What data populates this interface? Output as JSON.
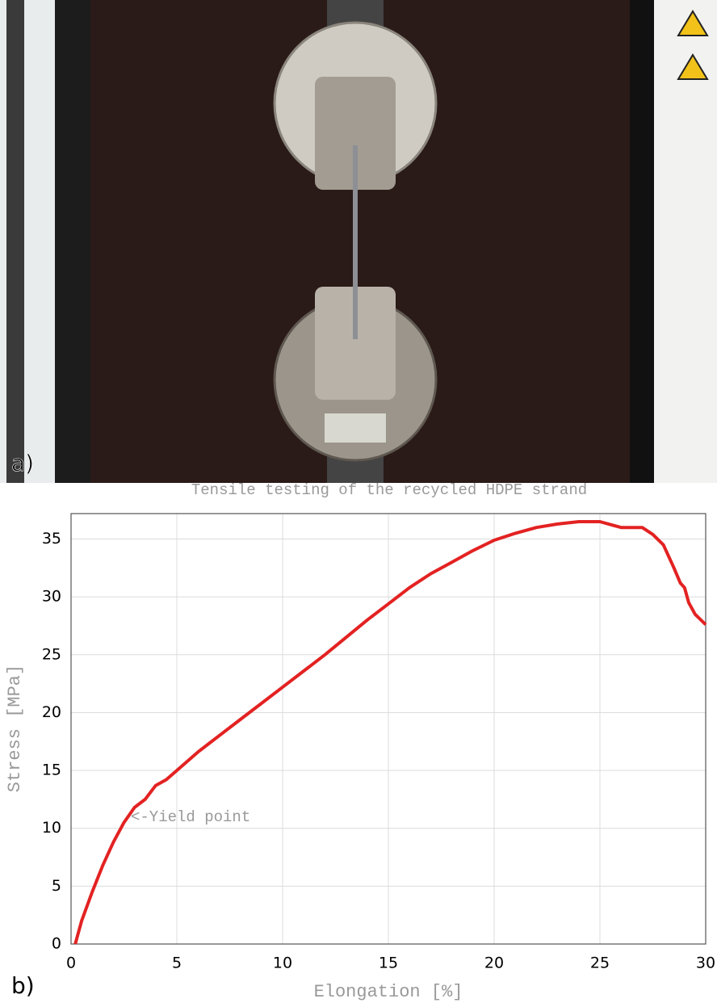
{
  "panel_labels": [
    "a)",
    "b)"
  ],
  "chart_data": {
    "type": "line",
    "title": "Tensile testing of the recycled HDPE strand",
    "x_label": "Elongation [%]",
    "y_label": "Stress [MPa]",
    "annotation": "<-Yield point",
    "color": "#e32222",
    "x": [
      0.2,
      0.5,
      1,
      1.5,
      2,
      2.5,
      3,
      3.5,
      4,
      4.5,
      5,
      6,
      7,
      8,
      9,
      10,
      11,
      12,
      13,
      14,
      15,
      16,
      17,
      18,
      19,
      20,
      21,
      22,
      23,
      24,
      25,
      26,
      27,
      27.5,
      28,
      28.5,
      28.8,
      29,
      29.2,
      29.5,
      30
    ],
    "values": [
      0,
      2,
      4.5,
      6.8,
      8.8,
      10.5,
      11.8,
      12.5,
      13.7,
      14.2,
      15,
      16.6,
      18,
      19.4,
      20.8,
      22.2,
      23.6,
      25,
      26.5,
      28,
      29.4,
      30.8,
      32,
      33,
      34,
      34.9,
      35.5,
      36,
      36.3,
      36.5,
      36.5,
      36,
      36,
      35.4,
      34.5,
      32.5,
      31.2,
      30.8,
      29.5,
      28.5,
      27.6
    ],
    "xlim": [
      0,
      30
    ],
    "xticks": [
      0,
      5,
      10,
      15,
      20,
      25,
      30
    ],
    "ylim": [
      0,
      37.2
    ],
    "yticks": [
      0,
      5,
      10,
      15,
      20,
      25,
      30,
      35
    ],
    "grid": true
  }
}
